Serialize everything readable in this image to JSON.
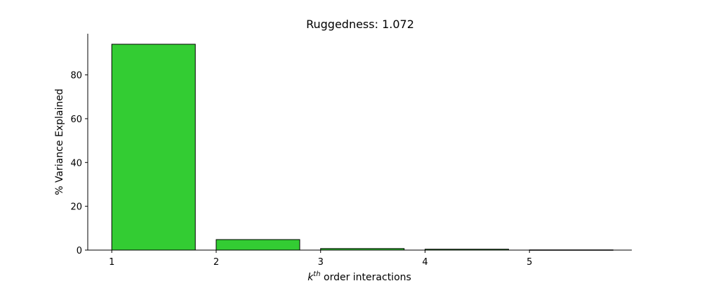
{
  "chart_data": {
    "type": "bar",
    "title": "Ruggedness: 1.072",
    "xlabel": {
      "base": "k",
      "sup": "th",
      "rest": " order interactions"
    },
    "ylabel": "% Variance Explained",
    "categories": [
      "1",
      "2",
      "3",
      "4",
      "5"
    ],
    "x": [
      1,
      2,
      3,
      4,
      5
    ],
    "values": [
      94.0,
      4.8,
      0.7,
      0.4,
      0.1
    ],
    "xlim": [
      0.77,
      5.98
    ],
    "ylim": [
      0,
      98.8
    ],
    "yticks": [
      0,
      20,
      40,
      60,
      80
    ],
    "bar_color": "#33cc33",
    "edge_color": "#000000",
    "grid": false
  }
}
